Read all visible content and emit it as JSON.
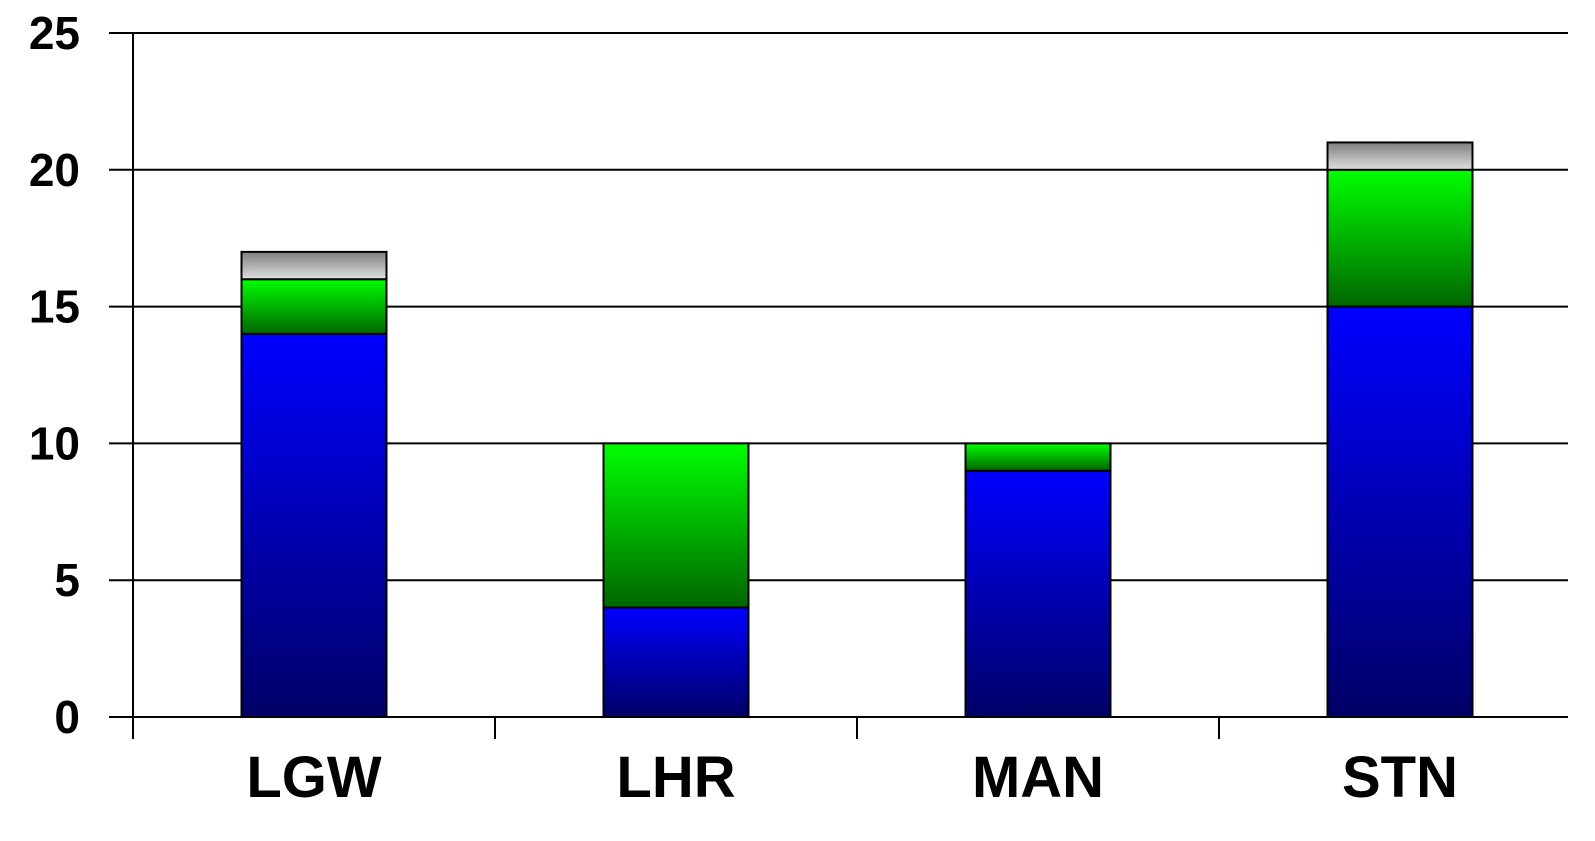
{
  "chart_data": {
    "type": "bar",
    "stacked": true,
    "categories": [
      "LGW",
      "LHR",
      "MAN",
      "STN"
    ],
    "series": [
      {
        "values": [
          14,
          4,
          9,
          15
        ],
        "color_top": "#0000ff",
        "color_bottom": "#000066"
      },
      {
        "values": [
          2,
          6,
          1,
          5
        ],
        "color_top": "#00ff00",
        "color_bottom": "#006600"
      },
      {
        "values": [
          1,
          0,
          0,
          1
        ],
        "color_top": "#7f7f7f",
        "color_bottom": "#e0e0e0"
      }
    ],
    "ylim": [
      0,
      25
    ],
    "yticks": [
      "0",
      "5",
      "10",
      "15",
      "20",
      "25"
    ],
    "grid": true,
    "legend": "none"
  }
}
